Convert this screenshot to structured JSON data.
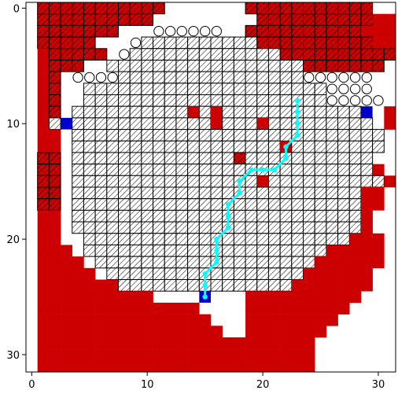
{
  "figure": {
    "background": "#ffffff"
  },
  "chart_data": {
    "type": "heatmap",
    "title": "",
    "xlabel": "",
    "ylabel": "",
    "grid_size": [
      32,
      32
    ],
    "xlim": [
      -0.5,
      31.5
    ],
    "ylim": [
      31.5,
      -0.5
    ],
    "y_inverted": true,
    "xticks": [
      0,
      10,
      20,
      30
    ],
    "yticks": [
      0,
      10,
      20,
      30
    ],
    "xtick_labels": [
      "0",
      "10",
      "20",
      "30"
    ],
    "ytick_labels": [
      "0",
      "10",
      "20",
      "30"
    ],
    "legend": "none",
    "grid": false,
    "colors": {
      "background": "#ffffff",
      "danger": "#cc0000",
      "known_free_fill": "#ffffff",
      "hatch_stroke": "#000000",
      "marker_blue": "#0000cc",
      "path": "#00ffff"
    },
    "cell_encoding": {
      "R": "solid red region",
      "D": "red cell with black hatch (danger, observed)",
      "W": "white cell with black hatch (observed free)",
      "O": "open circle marker",
      "B": "blue marker",
      ".": "empty"
    },
    "grid_rows": [
      ".DDDDDDDDDDD.......DDDDDDDDDDD..",
      ".DDDDDDDDDD.........DDDDDDDDDDRR",
      ".DDDDDDD...OOOOOO..DDDDDDDDDDRRR",
      ".DDDDD...OWWWWWWWWWWDDDDDDDDDDRR",
      ".RDDDDD.OWWWWWWWWWWWWWDDDDDDDDDDD",
      ".RDDD..WWWWWWWWWWWWWWWWWDDDDDDD..",
      ".RD.OOOOWWWWWWWWWWWWWWWWOOOOOO...",
      ".RD..WWWWWWWWWWWWWWWWWWWWWOOOO..R",
      ".RD..WWWWWWWWWWWWWWWWWWWWWOOOOO.R",
      ".RD.WWWWWWWWWWRWRWWWWWWWWWWWWB.RR",
      ".RWBWWWWWWWWWWWWRWWWRWWWWWWWWW.RR",
      ".RR.WWWWWWWWWWWWWWWWWWWWWWWWWWW.R",
      ".RR.WWWWWWWWWWWWWWWWWWRWWWWWWWW..",
      ".DD.WWWWWWWWWWWWWWDWWWWWWWWWWW...",
      ".DD.WWWWWWWWWWWWWWWWWWWWWWWWWWR..",
      ".DD.WWWWWWWWWWWWWWWWRWWWWWWWWWWRR",
      ".DD.WWWWWWWWWWWWWWWWWWWWWWWWWRR..",
      ".DD.WWWWWWWWWWWWWWWWWWWWWWWWWRR..",
      ".RR.WWWWWWWWWWWWWWWWWWWWWWWWWR...",
      ".RR.WWWWWWWWWWWWWWWWWWWWWWWWWR...",
      ".RR..WWWWWWWWWWWWWWWWWWWWWWWRRR..",
      ".RRR.WWWWWWWWWWWWWWWWWWWWWRRRRR..",
      ".RRRR.WWWWWWWWWWWWWWWWWWWRRRRRR..",
      ".RRRRR.WWWWWWWWWWWWWWWWWRRRRRR...",
      ".RRRRRRRWWWWWWWWWWWWWWWRRRRRRR...",
      ".RRRRRRRRRR....B...RRRRRRRRRR....",
      ".RRRRRRRRRRRRRR....RRRRRRRRR.....",
      ".RRRRRRRRRRRRRRR...RRRRRRRR......",
      ".RRRRRRRRRRRRRRRR..RRRRRRR.......",
      ".RRRRRRRRRRRRRRRRRRRRRRRR........",
      ".RRRRRRRRRRRRRRRRRRRRRRRR........",
      ".RRRRRRRRRRRRRRRRRRRRRRRR........"
    ],
    "path": [
      [
        15,
        25
      ],
      [
        15,
        24
      ],
      [
        15,
        23
      ],
      [
        16,
        22
      ],
      [
        16,
        21
      ],
      [
        16,
        20
      ],
      [
        17,
        19
      ],
      [
        17,
        18
      ],
      [
        17,
        17
      ],
      [
        18,
        16
      ],
      [
        18,
        15
      ],
      [
        19,
        14
      ],
      [
        20,
        14
      ],
      [
        21,
        14
      ],
      [
        22,
        13
      ],
      [
        22,
        12
      ],
      [
        23,
        11
      ],
      [
        23,
        10
      ],
      [
        23,
        9
      ],
      [
        23,
        8
      ]
    ]
  }
}
